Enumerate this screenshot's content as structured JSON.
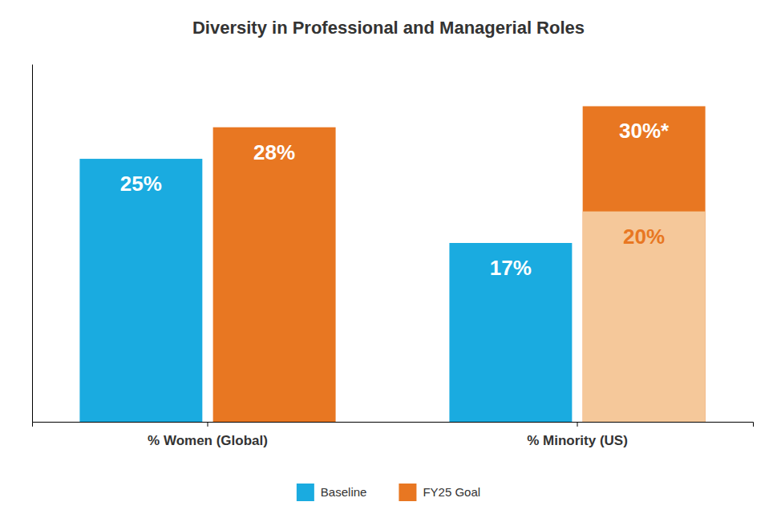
{
  "chart_data": {
    "type": "bar",
    "title": "Diversity in Professional and Managerial Roles",
    "categories": [
      "% Women (Global)",
      "% Minority (US)"
    ],
    "series": [
      {
        "name": "Baseline",
        "color": "#1AABE0",
        "values": [
          25,
          17
        ],
        "value_labels": [
          "25%",
          "17%"
        ]
      },
      {
        "name": "FY25 Goal",
        "color": "#E87722",
        "values": [
          28,
          30
        ],
        "value_labels": [
          "28%",
          "30%*"
        ]
      },
      {
        "color": "#F5C89A",
        "values": [
          null,
          20
        ],
        "value_labels": [
          null,
          "20%"
        ]
      }
    ],
    "ylim": [
      0,
      34
    ],
    "yticks": [],
    "tick_labels": "x",
    "data_labels": true,
    "legend": "bottom"
  }
}
